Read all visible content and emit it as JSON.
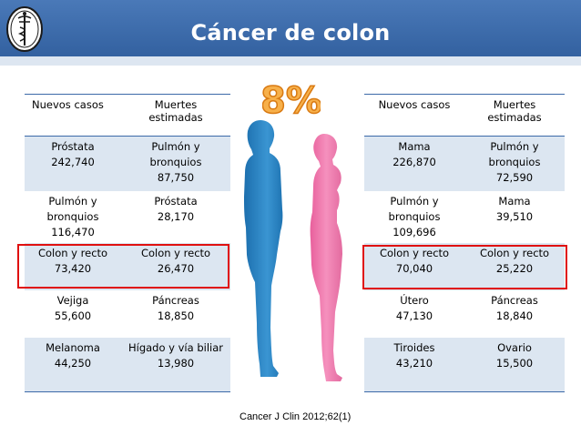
{
  "title": "Cáncer de colon",
  "percentage": "8%",
  "citation": "Cancer J Clin 2012;62(1)",
  "colors": {
    "header": "#3a69a8",
    "highlight": "#e01010",
    "shade": "#dce6f1",
    "male": "#2a85c4",
    "female": "#ef7fb0",
    "pct": "#f2992e"
  },
  "icons": {
    "logo": "caduceus-seal-icon"
  },
  "men": {
    "headers": {
      "new_cases": "Nuevos casos",
      "deaths": "Muertes estimadas"
    },
    "rows": [
      {
        "new_cases": [
          "Próstata",
          "242,740"
        ],
        "deaths": [
          "Pulmón y",
          "bronquios",
          "87,750"
        ]
      },
      {
        "new_cases": [
          "Pulmón y",
          "bronquios",
          "116,470"
        ],
        "deaths": [
          "Próstata",
          "28,170"
        ]
      },
      {
        "new_cases": [
          "Colon y recto",
          "73,420"
        ],
        "deaths": [
          "Colon y recto",
          "26,470"
        ]
      },
      {
        "new_cases": [
          "Vejiga",
          "55,600"
        ],
        "deaths": [
          "Páncreas",
          "18,850"
        ]
      },
      {
        "new_cases": [
          "Melanoma",
          "44,250"
        ],
        "deaths": [
          "Hígado y vía biliar",
          "13,980"
        ]
      }
    ]
  },
  "women": {
    "headers": {
      "new_cases": "Nuevos casos",
      "deaths": "Muertes estimadas"
    },
    "rows": [
      {
        "new_cases": [
          "Mama",
          "226,870"
        ],
        "deaths": [
          "Pulmón y",
          "bronquios",
          "72,590"
        ]
      },
      {
        "new_cases": [
          "Pulmón y",
          "bronquios",
          "109,696"
        ],
        "deaths": [
          "Mama",
          "39,510"
        ]
      },
      {
        "new_cases": [
          "Colon y recto",
          "70,040"
        ],
        "deaths": [
          "Colon y recto",
          "25,220"
        ]
      },
      {
        "new_cases": [
          "Útero",
          "47,130"
        ],
        "deaths": [
          "Páncreas",
          "18,840"
        ]
      },
      {
        "new_cases": [
          "Tiroides",
          "43,210"
        ],
        "deaths": [
          "Ovario",
          "15,500"
        ]
      }
    ]
  }
}
